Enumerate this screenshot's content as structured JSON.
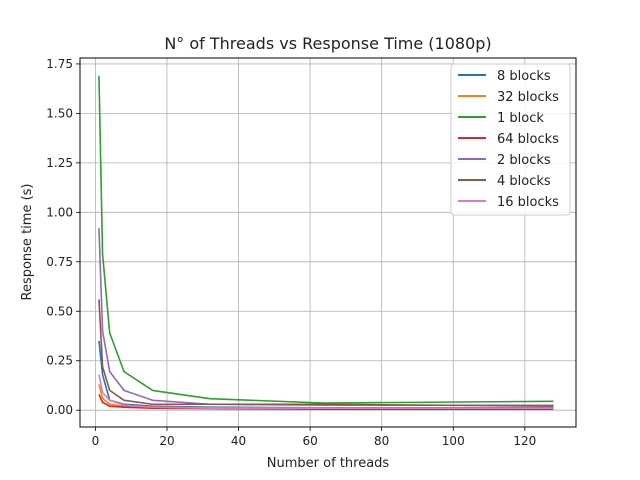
{
  "chart_data": {
    "type": "line",
    "title": "N° of Threads vs Response Time (1080p)",
    "xlabel": "Number of threads",
    "ylabel": "Response time (s)",
    "xlim": [
      -4.3,
      134.3
    ],
    "ylim": [
      -0.085,
      1.78
    ],
    "xticks": [
      0,
      20,
      40,
      60,
      80,
      100,
      120
    ],
    "yticks": [
      0.0,
      0.25,
      0.5,
      0.75,
      1.0,
      1.25,
      1.5,
      1.75
    ],
    "ytick_labels": [
      "0.00",
      "0.25",
      "0.50",
      "0.75",
      "1.00",
      "1.25",
      "1.50",
      "1.75"
    ],
    "grid": true,
    "legend_position": "top-right",
    "x": [
      1,
      2,
      4,
      8,
      16,
      32,
      64,
      128
    ],
    "series": [
      {
        "name": "8 blocks",
        "color": "#1f77b4",
        "values": [
          0.35,
          0.18,
          0.05,
          0.03,
          0.02,
          0.015,
          0.012,
          0.012
        ]
      },
      {
        "name": "32 blocks",
        "color": "#ff7f0e",
        "values": [
          0.13,
          0.06,
          0.03,
          0.02,
          0.015,
          0.012,
          0.01,
          0.01
        ]
      },
      {
        "name": "1 block",
        "color": "#2ca02c",
        "values": [
          1.69,
          0.79,
          0.39,
          0.195,
          0.1,
          0.058,
          0.036,
          0.045
        ]
      },
      {
        "name": "64 blocks",
        "color": "#d62728",
        "values": [
          0.08,
          0.04,
          0.02,
          0.015,
          0.01,
          0.008,
          0.005,
          0.005
        ]
      },
      {
        "name": "2 blocks",
        "color": "#9467bd",
        "values": [
          0.92,
          0.4,
          0.195,
          0.1,
          0.05,
          0.03,
          0.025,
          0.025
        ]
      },
      {
        "name": "4 blocks",
        "color": "#8c564b",
        "values": [
          0.56,
          0.22,
          0.1,
          0.05,
          0.03,
          0.03,
          0.03,
          0.02
        ]
      },
      {
        "name": "16 blocks",
        "color": "#e377c2",
        "values": [
          0.18,
          0.09,
          0.05,
          0.025,
          0.015,
          0.01,
          0.01,
          0.01
        ]
      }
    ]
  }
}
